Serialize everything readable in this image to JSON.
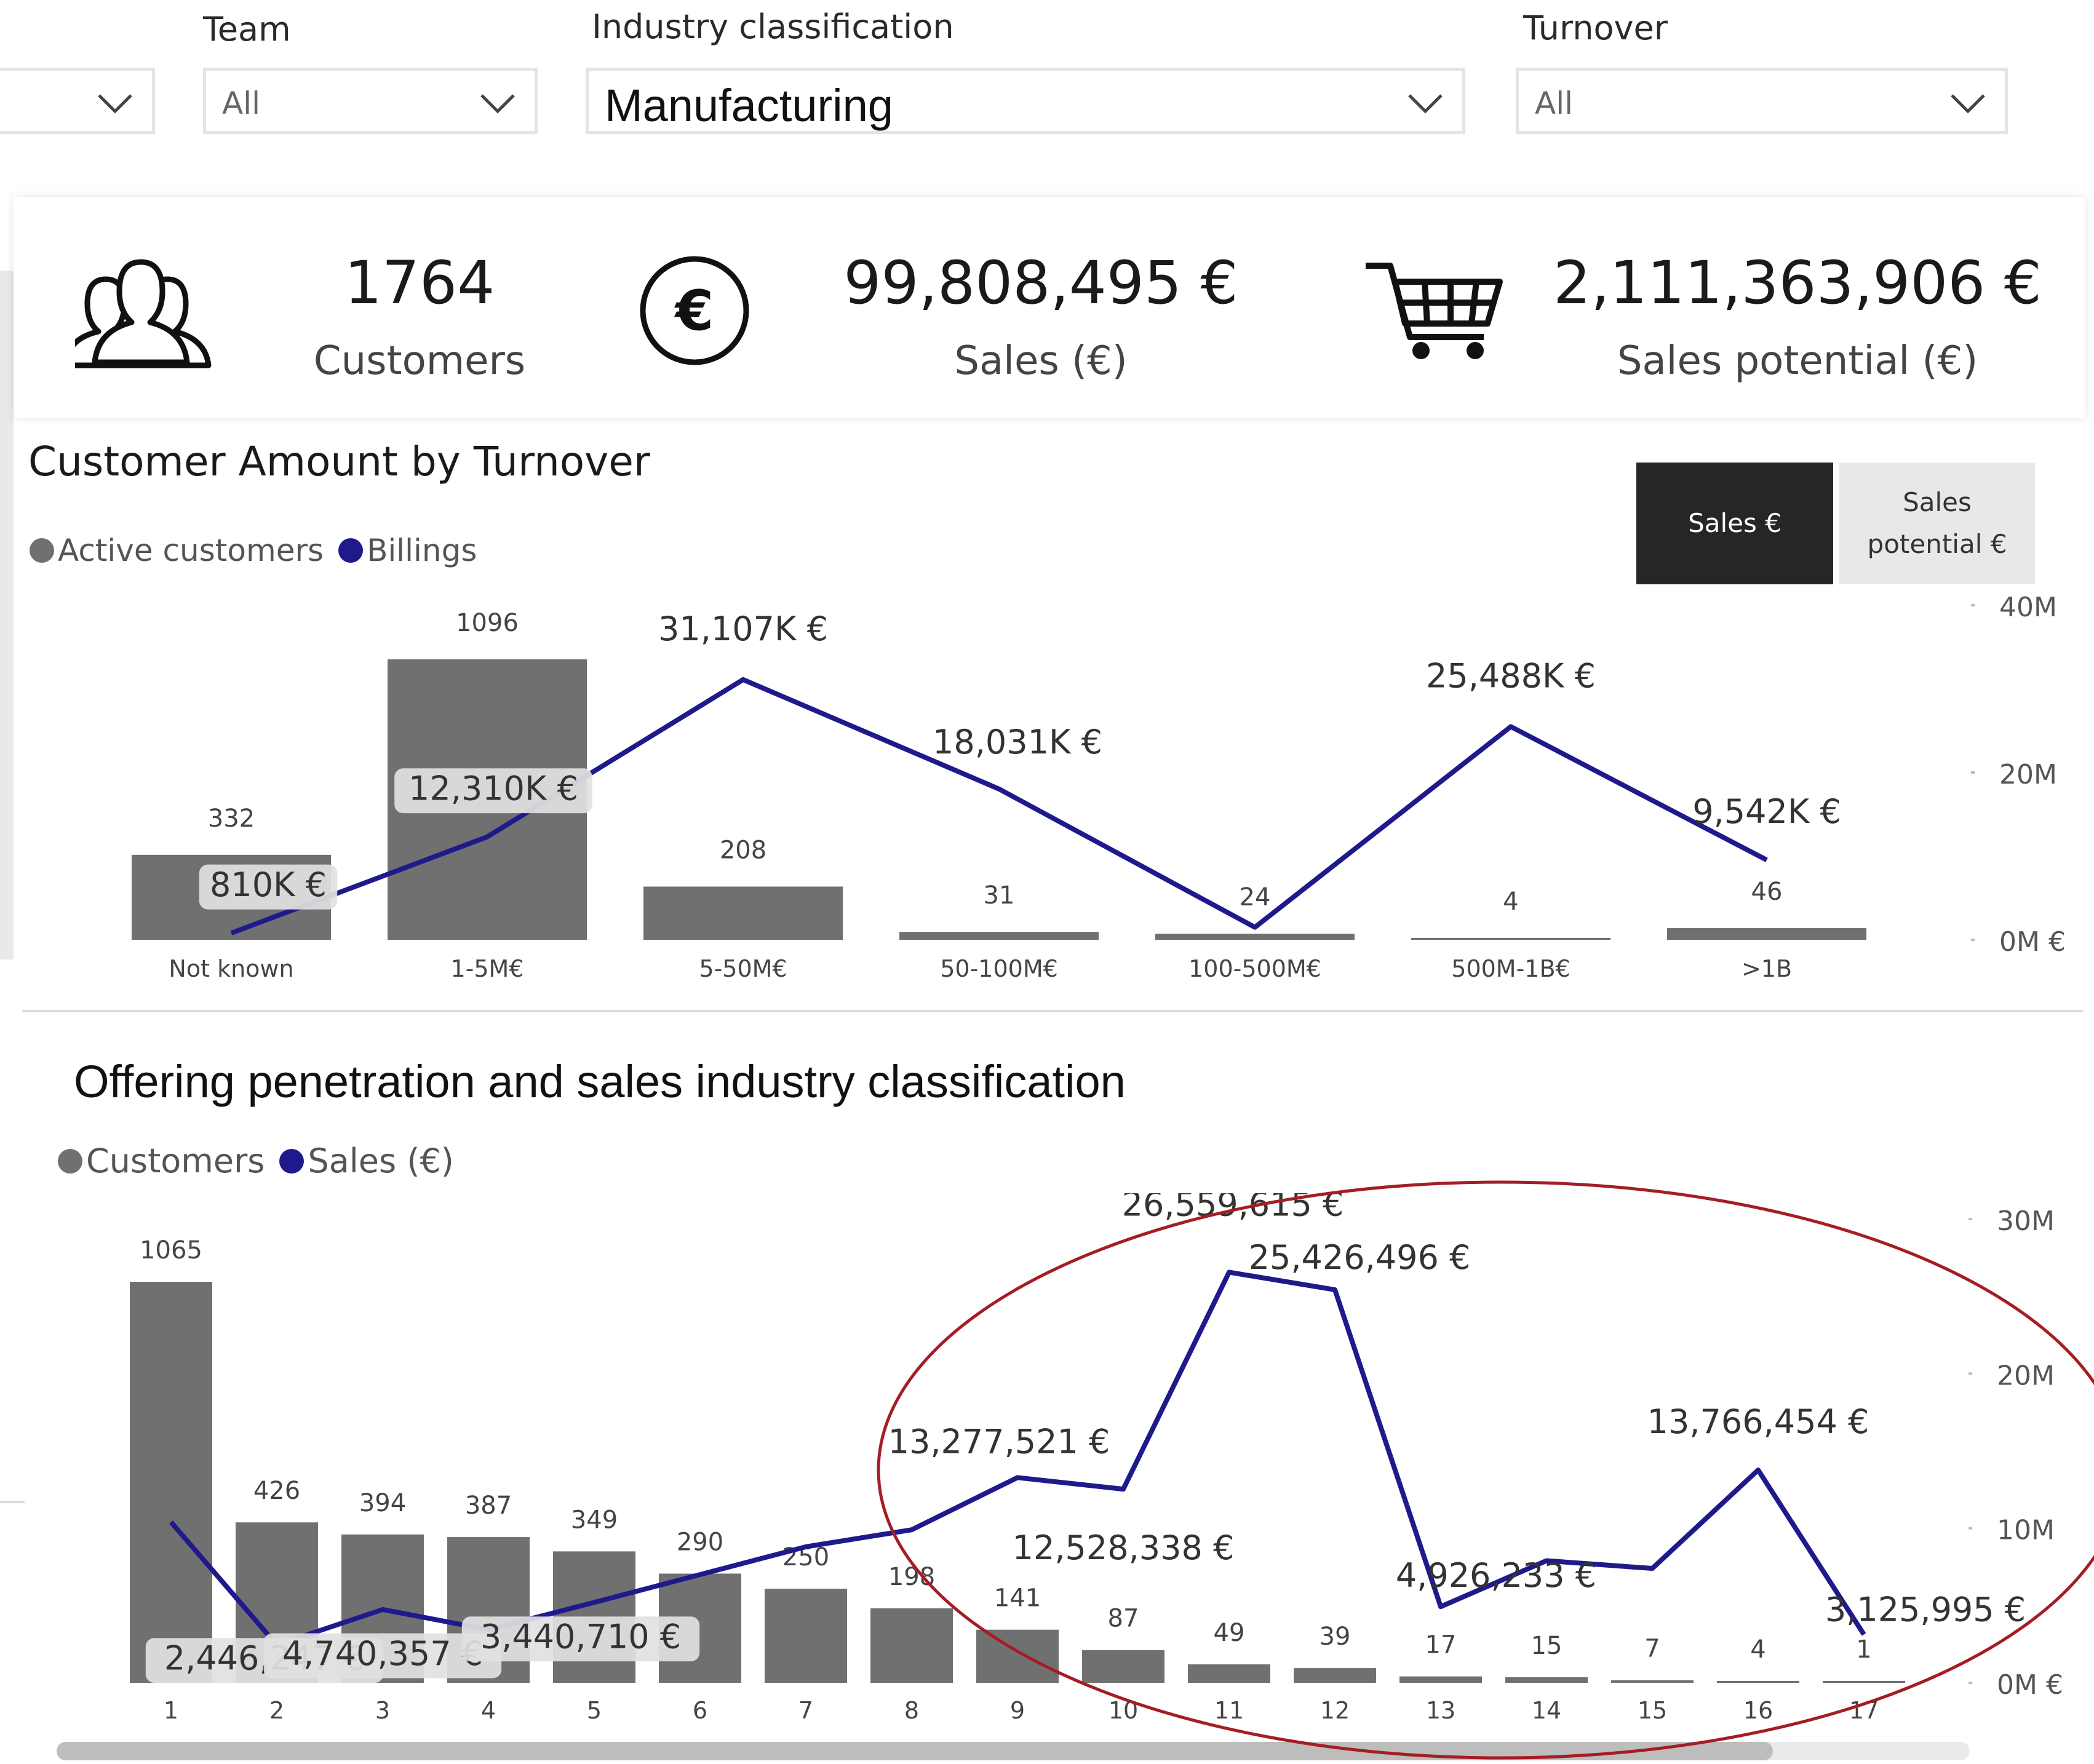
{
  "filters": [
    {
      "label": "",
      "value": ""
    },
    {
      "label": "Team",
      "value": "All"
    },
    {
      "label": "Industry classification",
      "value": "Manufacturing"
    },
    {
      "label": "Turnover",
      "value": "All"
    }
  ],
  "kpis": [
    {
      "value": "1764",
      "label": "Customers",
      "icon": "users-icon"
    },
    {
      "value": "99,808,495 €",
      "label": "Sales (€)",
      "icon": "euro-icon"
    },
    {
      "value": "2,111,363,906 €",
      "label": "Sales potential (€)",
      "icon": "shopping-cart-icon"
    }
  ],
  "chart1": {
    "title": "Customer Amount by Turnover",
    "legend": [
      {
        "name": "Active customers",
        "color": "#707070"
      },
      {
        "name": "Billings",
        "color": "#1f1a8c"
      }
    ],
    "toggle": {
      "active": "Sales €",
      "inactive_line1": "Sales",
      "inactive_line2": "potential €"
    }
  },
  "chart2": {
    "title": "Offering penetration and sales industry classification",
    "legend": [
      {
        "name": "Customers",
        "color": "#707070"
      },
      {
        "name": "Sales (€)",
        "color": "#1f1a8c"
      }
    ]
  },
  "chart_data": [
    {
      "type": "bar+line",
      "title": "Customer Amount by Turnover",
      "categories": [
        "Not known",
        "1-5M€",
        "5-50M€",
        "50-100M€",
        "100-500M€",
        "500M-1B€",
        ">1B"
      ],
      "series": [
        {
          "name": "Active customers",
          "type": "bar",
          "values": [
            332,
            1096,
            208,
            31,
            24,
            4,
            46
          ],
          "labels": [
            "332",
            "1096",
            "208",
            "31",
            "24",
            "4",
            "46"
          ]
        },
        {
          "name": "Billings",
          "type": "line",
          "values": [
            810000,
            12310000,
            31107000,
            18031000,
            1500000,
            25488000,
            9542000
          ],
          "labels": [
            "810K €",
            "12,310K €",
            "31,107K €",
            "18,031K €",
            "",
            "25,488K €",
            "9,542K €"
          ]
        }
      ],
      "y2_ticks": [
        "0M €",
        "20M",
        "40M"
      ],
      "y2lim": [
        0,
        40000000
      ]
    },
    {
      "type": "bar+line",
      "title": "Offering penetration and sales industry classification",
      "categories": [
        "1",
        "2",
        "3",
        "4",
        "5",
        "6",
        "7",
        "8",
        "9",
        "10",
        "11",
        "12",
        "13",
        "14",
        "15",
        "16",
        "17"
      ],
      "series": [
        {
          "name": "Customers",
          "type": "bar",
          "values": [
            1065,
            426,
            394,
            387,
            349,
            290,
            250,
            198,
            141,
            87,
            49,
            39,
            17,
            15,
            7,
            4,
            1
          ],
          "labels": [
            "1065",
            "426",
            "394",
            "387",
            "349",
            "290",
            "250",
            "198",
            "141",
            "87",
            "49",
            "39",
            "17",
            "15",
            "7",
            "4",
            "1"
          ]
        },
        {
          "name": "Sales (€)",
          "type": "line",
          "values": [
            10400000,
            2446247,
            4740357,
            3440710,
            5200000,
            7000000,
            8800000,
            9900000,
            13277521,
            12528338,
            26559615,
            25426496,
            4926233,
            7900000,
            7400000,
            13766454,
            3125995
          ],
          "labels": [
            "",
            "2,446,247 €",
            "4,740,357 €",
            "3,440,710 €",
            "",
            "",
            "",
            "",
            "13,277,521 €",
            "12,528,338 €",
            "26,559,615 €",
            "25,426,496 €",
            "4,926,233 €",
            "",
            "",
            "13,766,454 €",
            "3,125,995 €"
          ]
        }
      ],
      "y2_ticks": [
        "0M €",
        "10M",
        "20M",
        "30M"
      ],
      "y2lim": [
        0,
        30000000
      ]
    }
  ]
}
